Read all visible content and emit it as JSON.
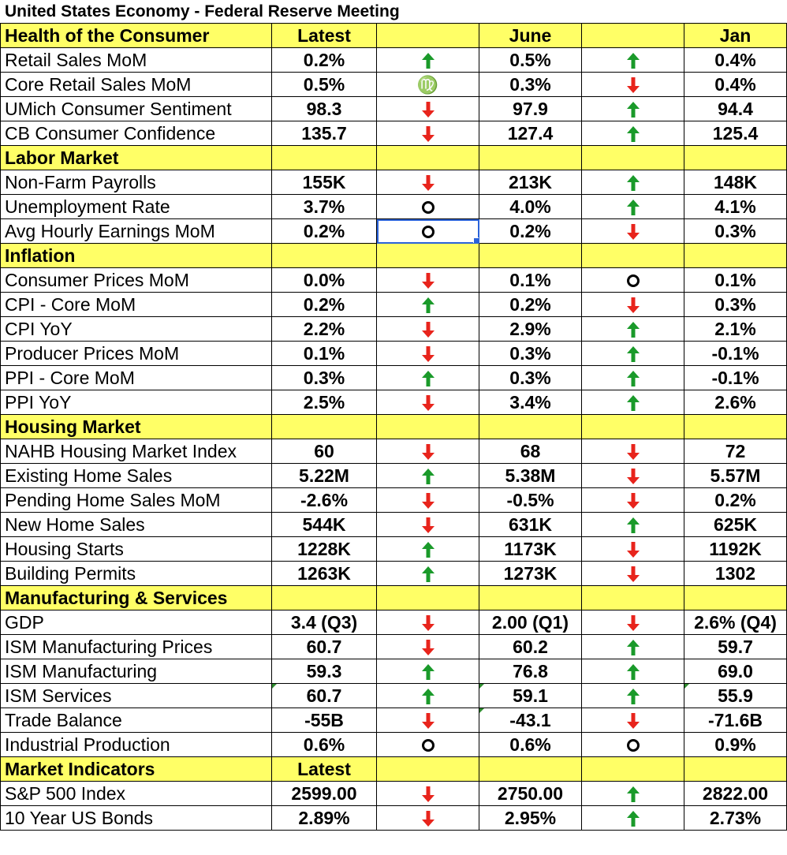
{
  "title": "United States Economy - Federal Reserve Meeting",
  "colors": {
    "section_bg": "#ffff66",
    "up_arrow": "#1a9a2a",
    "down_arrow": "#e8241c",
    "selection": "#2b63d9"
  },
  "sections": [
    {
      "header": [
        "Health of the Consumer",
        "Latest",
        "",
        "June",
        "",
        "Jan"
      ],
      "rows": [
        {
          "label": "Retail Sales MoM",
          "latest": "0.2%",
          "t1": "up",
          "june": "0.5%",
          "t2": "up",
          "jan": "0.4%"
        },
        {
          "label": "Core Retail Sales MoM",
          "latest": "0.5%",
          "t1": "virgo",
          "june": "0.3%",
          "t2": "down",
          "jan": "0.4%"
        },
        {
          "label": "UMich Consumer Sentiment",
          "latest": "98.3",
          "t1": "down",
          "june": "97.9",
          "t2": "up",
          "jan": "94.4"
        },
        {
          "label": "CB Consumer Confidence",
          "latest": "135.7",
          "t1": "down",
          "june": "127.4",
          "t2": "up",
          "jan": "125.4"
        }
      ]
    },
    {
      "header": [
        "Labor Market",
        "",
        "",
        "",
        "",
        ""
      ],
      "rows": [
        {
          "label": "Non-Farm Payrolls",
          "latest": "155K",
          "t1": "down",
          "june": "213K",
          "t2": "up",
          "jan": "148K"
        },
        {
          "label": "Unemployment Rate",
          "latest": "3.7%",
          "t1": "flat",
          "june": "4.0%",
          "t2": "up",
          "jan": "4.1%"
        },
        {
          "label": "Avg Hourly Earnings MoM",
          "latest": "0.2%",
          "t1": "flat",
          "june": "0.2%",
          "t2": "down",
          "jan": "0.3%",
          "selected": true
        }
      ]
    },
    {
      "header": [
        "Inflation",
        "",
        "",
        "",
        "",
        ""
      ],
      "rows": [
        {
          "label": "Consumer Prices MoM",
          "latest": "0.0%",
          "t1": "down",
          "june": "0.1%",
          "t2": "flat",
          "jan": "0.1%"
        },
        {
          "label": "CPI - Core MoM",
          "latest": "0.2%",
          "t1": "up",
          "june": "0.2%",
          "t2": "down",
          "jan": "0.3%"
        },
        {
          "label": "CPI YoY",
          "latest": "2.2%",
          "t1": "down",
          "june": "2.9%",
          "t2": "up",
          "jan": "2.1%"
        },
        {
          "label": "Producer Prices MoM",
          "latest": "0.1%",
          "t1": "down",
          "june": "0.3%",
          "t2": "up",
          "jan": "-0.1%"
        },
        {
          "label": "PPI - Core MoM",
          "latest": "0.3%",
          "t1": "up",
          "june": "0.3%",
          "t2": "up",
          "jan": "-0.1%"
        },
        {
          "label": "PPI YoY",
          "latest": "2.5%",
          "t1": "down",
          "june": "3.4%",
          "t2": "up",
          "jan": "2.6%"
        }
      ]
    },
    {
      "header": [
        "Housing Market",
        "",
        "",
        "",
        "",
        ""
      ],
      "rows": [
        {
          "label": "NAHB Housing Market Index",
          "latest": "60",
          "t1": "down",
          "june": "68",
          "t2": "down",
          "jan": "72"
        },
        {
          "label": "Existing Home Sales",
          "latest": "5.22M",
          "t1": "up",
          "june": "5.38M",
          "t2": "down",
          "jan": "5.57M"
        },
        {
          "label": "Pending Home Sales MoM",
          "latest": "-2.6%",
          "t1": "down",
          "june": "-0.5%",
          "t2": "down",
          "jan": "0.2%"
        },
        {
          "label": "New Home Sales",
          "latest": "544K",
          "t1": "down",
          "june": "631K",
          "t2": "up",
          "jan": "625K"
        },
        {
          "label": "Housing Starts",
          "latest": "1228K",
          "t1": "up",
          "june": "1173K",
          "t2": "down",
          "jan": "1192K"
        },
        {
          "label": "Building Permits",
          "latest": "1263K",
          "t1": "up",
          "june": "1273K",
          "t2": "down",
          "jan": "1302"
        }
      ]
    },
    {
      "header": [
        "Manufacturing & Services",
        "",
        "",
        "",
        "",
        ""
      ],
      "rows": [
        {
          "label": "GDP",
          "latest": "3.4 (Q3)",
          "t1": "down",
          "june": "2.00 (Q1)",
          "t2": "down",
          "jan": "2.6% (Q4)"
        },
        {
          "label": "ISM Manufacturing Prices",
          "latest": "60.7",
          "t1": "down",
          "june": "60.2",
          "t2": "up",
          "jan": "59.7"
        },
        {
          "label": "ISM Manufacturing",
          "latest": "59.3",
          "t1": "up",
          "june": "76.8",
          "t2": "up",
          "jan": "69.0"
        },
        {
          "label": "ISM Services",
          "latest": "60.7",
          "t1": "up",
          "june": "59.1",
          "t2": "up",
          "jan": "55.9",
          "corner_latest": true,
          "corner_june": true,
          "corner_jan": true
        },
        {
          "label": "Trade Balance",
          "latest": "-55B",
          "t1": "down",
          "june": "-43.1",
          "t2": "down",
          "jan": "-71.6B",
          "corner_june": true
        },
        {
          "label": "Industrial Production",
          "latest": "0.6%",
          "t1": "flat",
          "june": "0.6%",
          "t2": "flat",
          "jan": "0.9%"
        }
      ]
    },
    {
      "header": [
        "Market Indicators",
        "Latest",
        "",
        "",
        "",
        ""
      ],
      "rows": [
        {
          "label": "S&P 500 Index",
          "latest": "2599.00",
          "t1": "down",
          "june": "2750.00",
          "t2": "up",
          "jan": "2822.00"
        },
        {
          "label": "10 Year US Bonds",
          "latest": "2.89%",
          "t1": "down",
          "june": "2.95%",
          "t2": "up",
          "jan": "2.73%"
        }
      ]
    }
  ]
}
